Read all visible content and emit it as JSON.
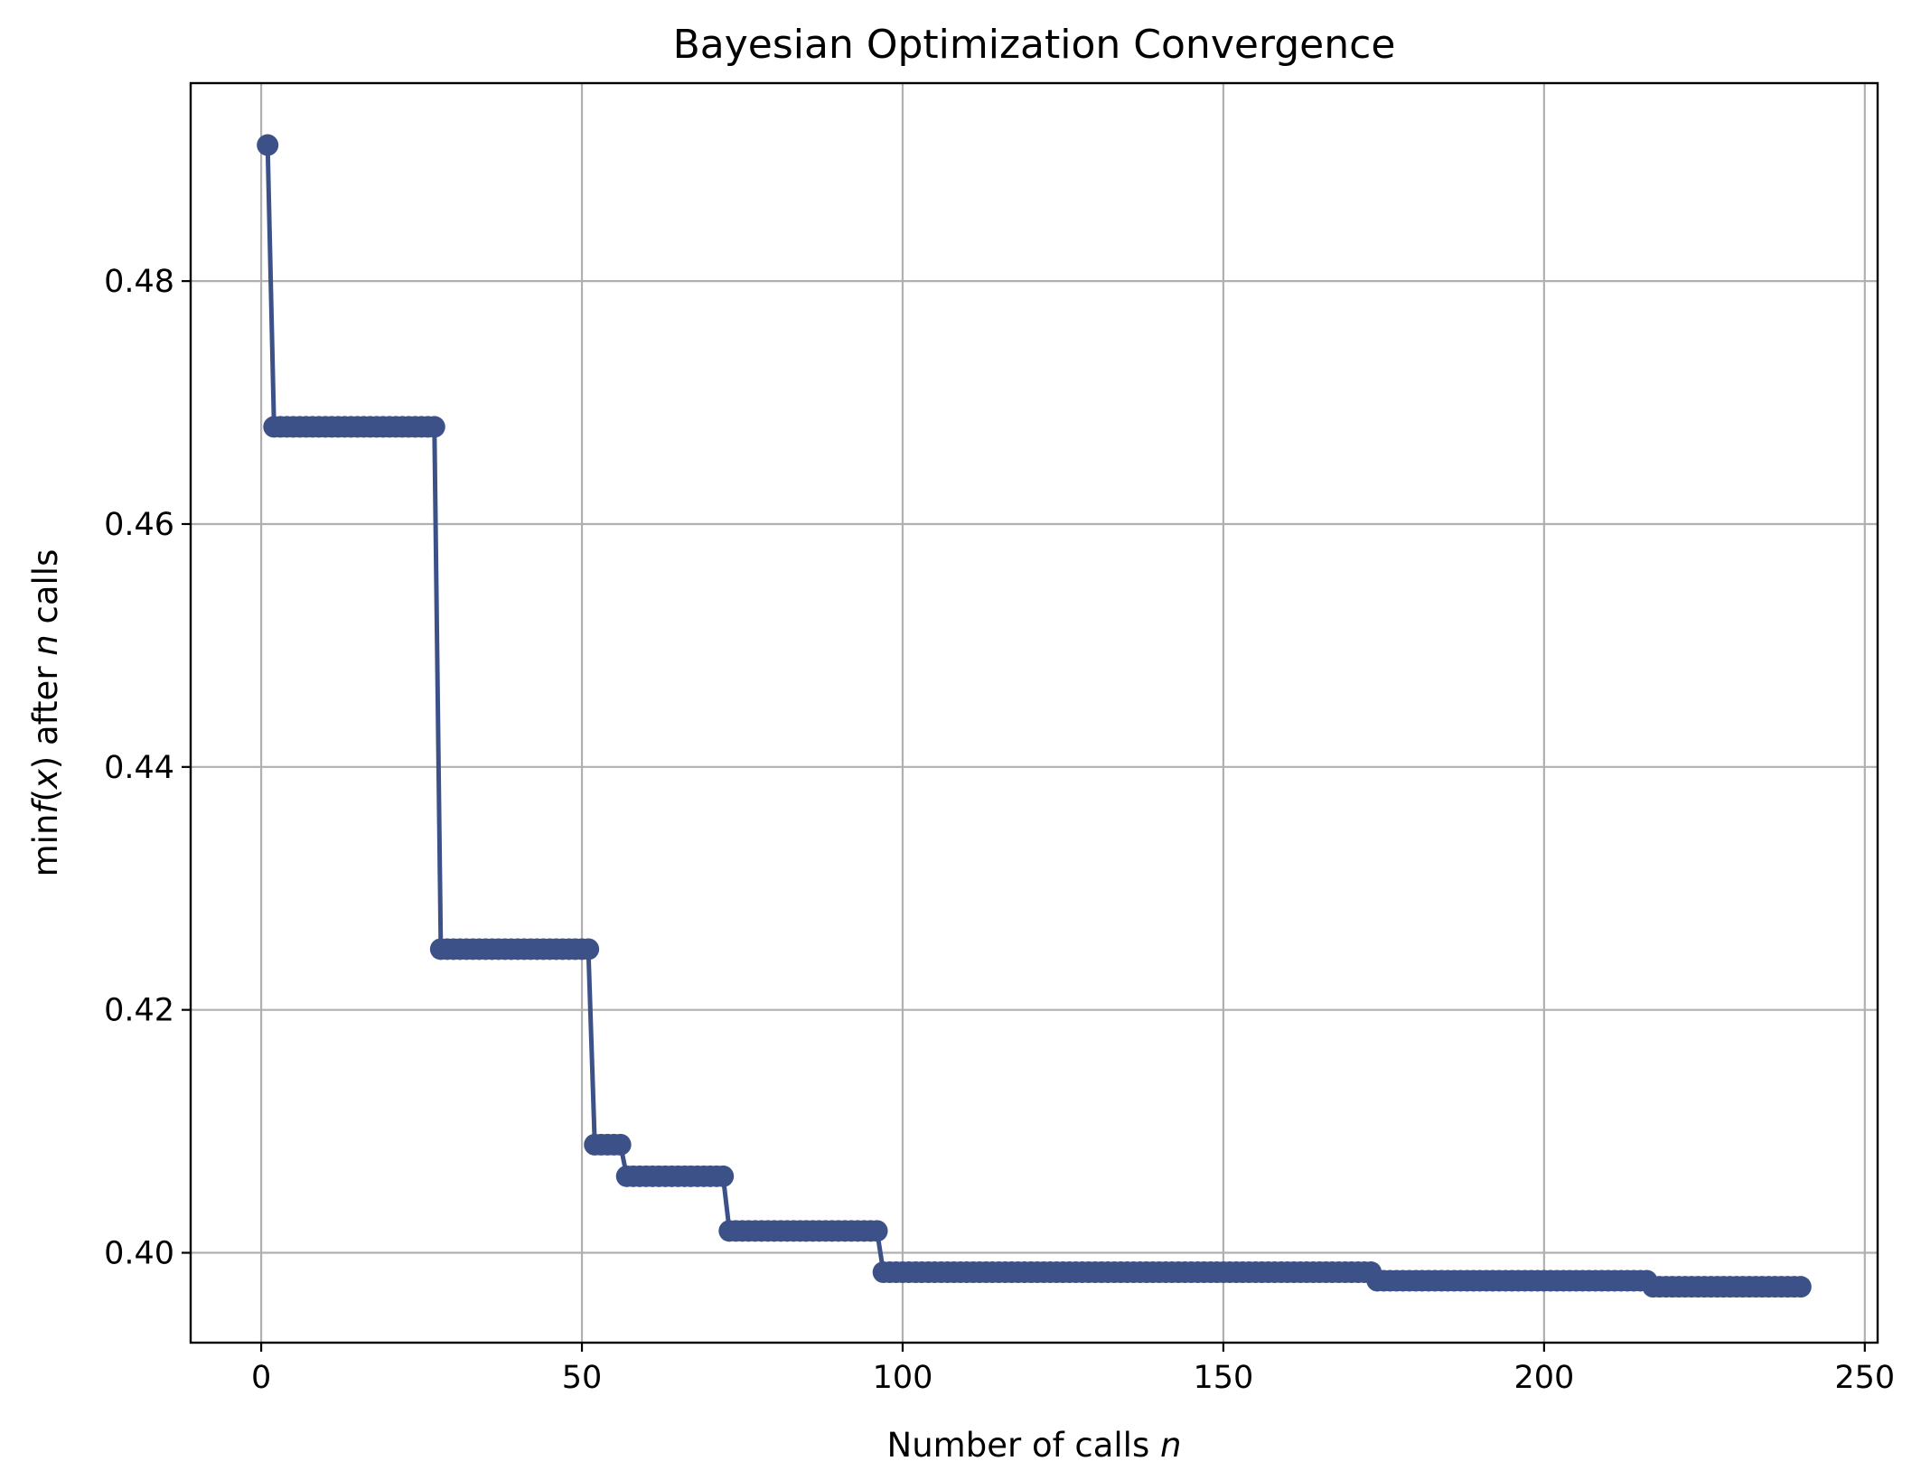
{
  "chart_data": {
    "type": "line",
    "title": "Bayesian Optimization Convergence",
    "xlabel": {
      "main": "Number of calls ",
      "italic": "n"
    },
    "ylabel": {
      "prefix": "min",
      "fx": "f",
      "open": "(",
      "x": "x",
      "close": ")",
      "after": " after ",
      "n": "n",
      "suffix": " calls"
    },
    "xlim": [
      -11,
      252
    ],
    "ylim": [
      0.3926,
      0.4963
    ],
    "xticks": [
      0,
      50,
      100,
      150,
      200,
      250
    ],
    "xtick_labels": [
      "0",
      "50",
      "100",
      "150",
      "200",
      "250"
    ],
    "yticks": [
      0.4,
      0.42,
      0.44,
      0.46,
      0.48
    ],
    "ytick_labels": [
      "0.40",
      "0.42",
      "0.44",
      "0.46",
      "0.48"
    ],
    "grid": true,
    "series": [
      {
        "color": "#3d5189",
        "marker": "circle",
        "segments": [
          {
            "x_from": 1,
            "x_to": 1,
            "y": 0.4912
          },
          {
            "x_from": 2,
            "x_to": 27,
            "y": 0.468
          },
          {
            "x_from": 28,
            "x_to": 51,
            "y": 0.425
          },
          {
            "x_from": 52,
            "x_to": 56,
            "y": 0.4089
          },
          {
            "x_from": 57,
            "x_to": 72,
            "y": 0.4063
          },
          {
            "x_from": 73,
            "x_to": 96,
            "y": 0.4018
          },
          {
            "x_from": 97,
            "x_to": 173,
            "y": 0.3984
          },
          {
            "x_from": 174,
            "x_to": 216,
            "y": 0.3977
          },
          {
            "x_from": 217,
            "x_to": 240,
            "y": 0.3972
          }
        ]
      }
    ]
  }
}
